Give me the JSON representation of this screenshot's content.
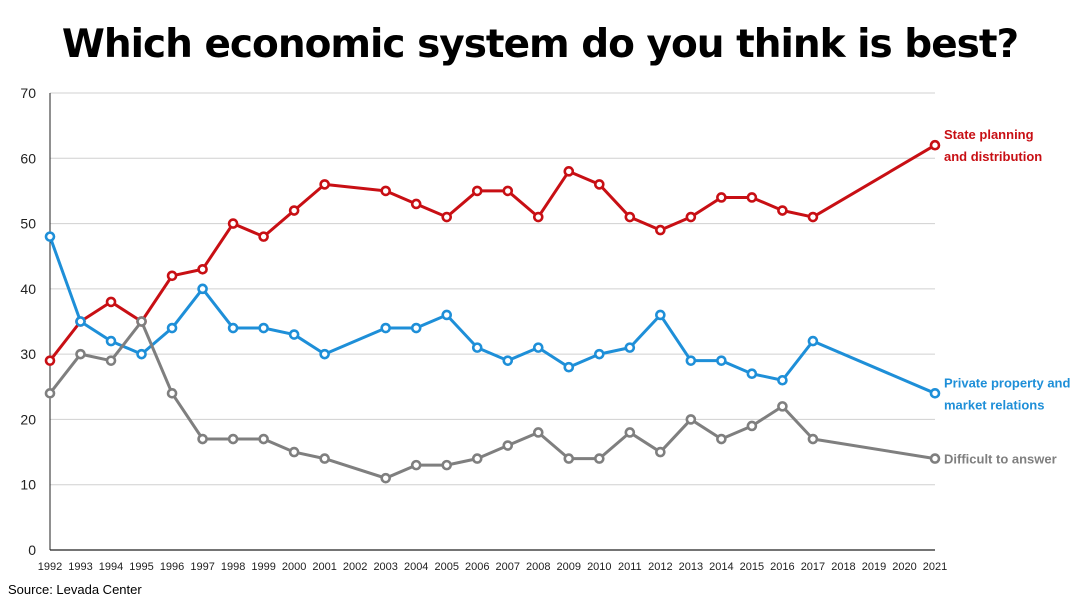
{
  "title": "Which economic system do you think is best?",
  "source": "Source: Levada Center",
  "chart_data": {
    "type": "line",
    "title": "Which economic system do you think is best?",
    "xlabel": "",
    "ylabel": "",
    "ylim": [
      0,
      70
    ],
    "yticks": [
      0,
      10,
      20,
      30,
      40,
      50,
      60,
      70
    ],
    "xlim": [
      1992,
      2021
    ],
    "xticks": [
      1992,
      1993,
      1994,
      1995,
      1996,
      1997,
      1998,
      1999,
      2000,
      2001,
      2002,
      2003,
      2004,
      2005,
      2006,
      2007,
      2008,
      2009,
      2010,
      2011,
      2012,
      2013,
      2014,
      2015,
      2016,
      2017,
      2018,
      2019,
      2020,
      2021
    ],
    "grid": true,
    "legend": "direct labels at line ends (right)",
    "series": [
      {
        "name": "State planning and distribution",
        "label_lines": [
          "State planning",
          "and distribution"
        ],
        "color": "#c80f14",
        "x": [
          1992,
          1993,
          1994,
          1995,
          1996,
          1997,
          1998,
          1999,
          2000,
          2001,
          2003,
          2004,
          2005,
          2006,
          2007,
          2008,
          2009,
          2010,
          2011,
          2012,
          2013,
          2014,
          2015,
          2016,
          2017,
          2021
        ],
        "y": [
          29,
          35,
          38,
          35,
          42,
          43,
          50,
          48,
          52,
          56,
          55,
          53,
          51,
          55,
          55,
          51,
          58,
          56,
          51,
          49,
          51,
          54,
          54,
          52,
          51,
          62
        ]
      },
      {
        "name": "Private property and market relations",
        "label_lines": [
          "Private property and",
          "market relations"
        ],
        "color": "#1e8fd8",
        "x": [
          1992,
          1993,
          1994,
          1995,
          1996,
          1997,
          1998,
          1999,
          2000,
          2001,
          2003,
          2004,
          2005,
          2006,
          2007,
          2008,
          2009,
          2010,
          2011,
          2012,
          2013,
          2014,
          2015,
          2016,
          2017,
          2021
        ],
        "y": [
          48,
          35,
          32,
          30,
          34,
          40,
          34,
          34,
          33,
          30,
          34,
          34,
          36,
          31,
          29,
          31,
          28,
          30,
          31,
          36,
          29,
          29,
          27,
          26,
          32,
          24
        ]
      },
      {
        "name": "Difficult to answer",
        "label_lines": [
          "Difficult to answer"
        ],
        "color": "#7f7f7f",
        "x": [
          1992,
          1993,
          1994,
          1995,
          1996,
          1997,
          1998,
          1999,
          2000,
          2001,
          2003,
          2004,
          2005,
          2006,
          2007,
          2008,
          2009,
          2010,
          2011,
          2012,
          2013,
          2014,
          2015,
          2016,
          2017,
          2021
        ],
        "y": [
          24,
          30,
          29,
          35,
          24,
          17,
          17,
          17,
          15,
          14,
          11,
          13,
          13,
          14,
          16,
          18,
          14,
          14,
          18,
          15,
          20,
          17,
          19,
          22,
          17,
          14
        ]
      }
    ]
  }
}
